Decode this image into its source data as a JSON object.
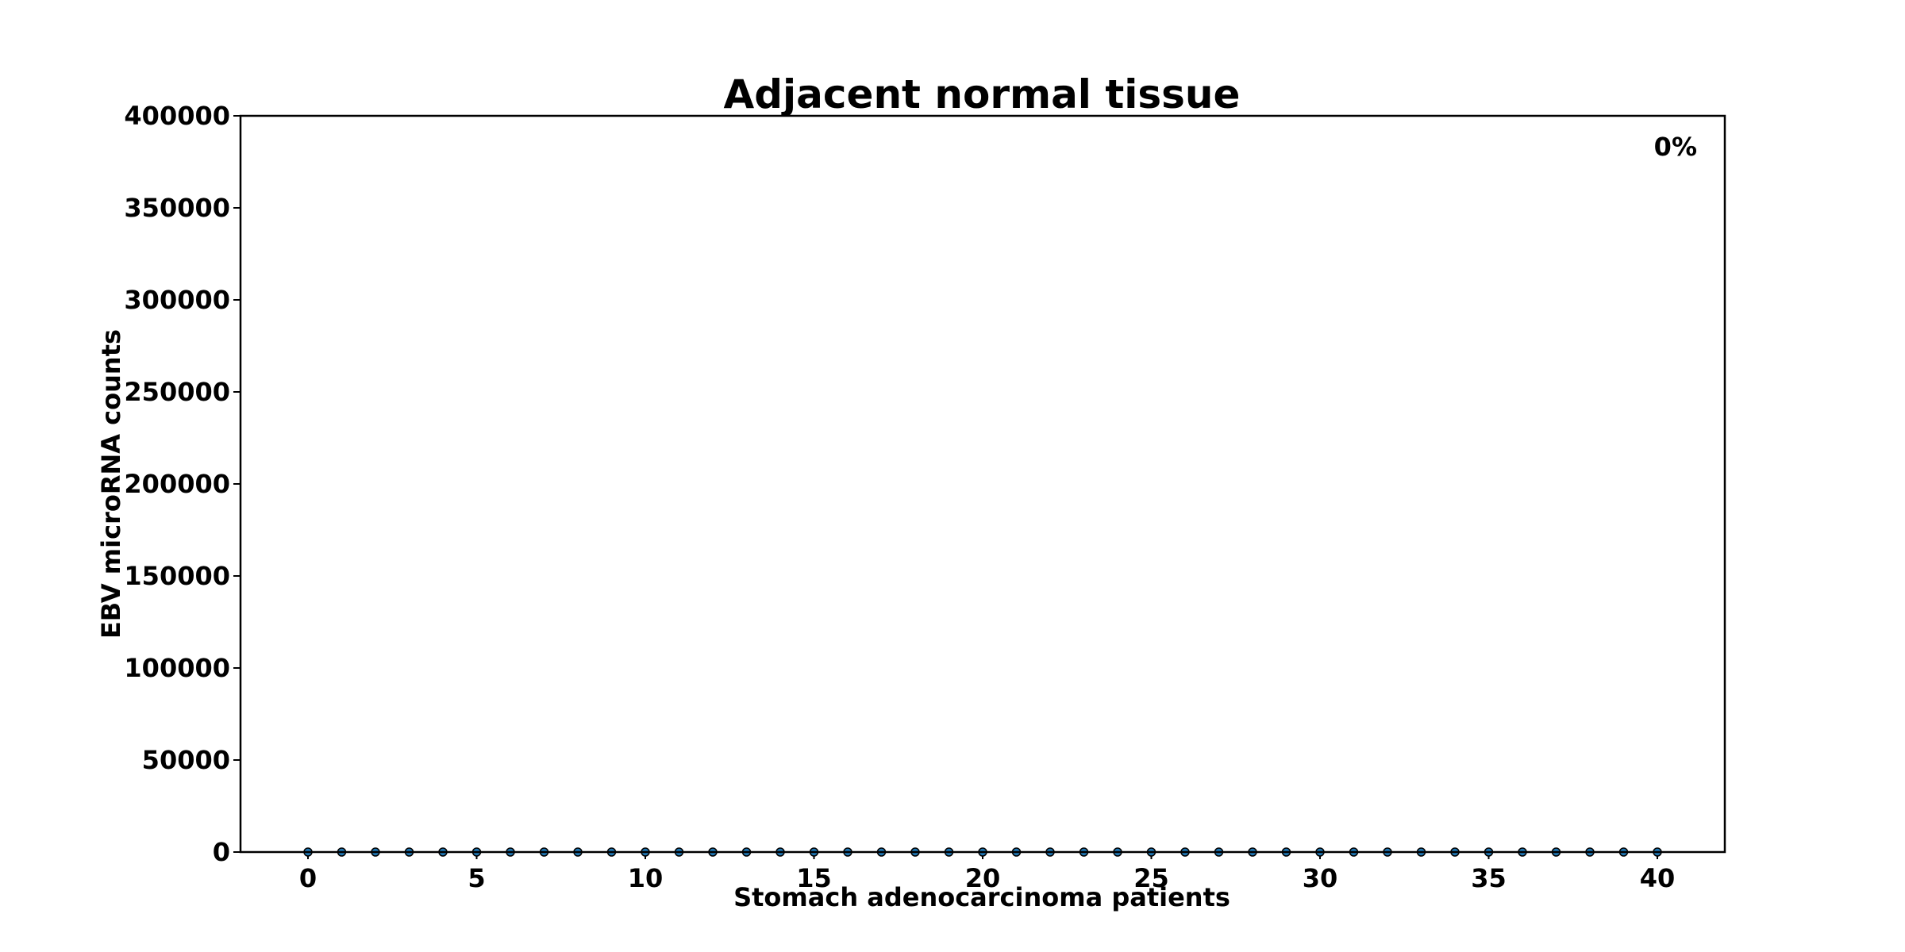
{
  "chart_data": {
    "type": "scatter",
    "title": "Adjacent normal tissue",
    "xlabel": "Stomach adenocarcinoma patients",
    "ylabel": "EBV microRNA counts",
    "annotation": "0%",
    "xlim": [
      -2,
      42
    ],
    "ylim": [
      0,
      400000
    ],
    "xticks": [
      0,
      5,
      10,
      15,
      20,
      25,
      30,
      35,
      40
    ],
    "yticks": [
      0,
      50000,
      100000,
      150000,
      200000,
      250000,
      300000,
      350000,
      400000
    ],
    "grid": false,
    "series": [
      {
        "color": "#1f77b4",
        "x": [
          0,
          1,
          2,
          3,
          4,
          5,
          6,
          7,
          8,
          9,
          10,
          11,
          12,
          13,
          14,
          15,
          16,
          17,
          18,
          19,
          20,
          21,
          22,
          23,
          24,
          25,
          26,
          27,
          28,
          29,
          30,
          31,
          32,
          33,
          34,
          35,
          36,
          37,
          38,
          39,
          40
        ],
        "y": [
          0,
          0,
          0,
          0,
          0,
          0,
          0,
          0,
          0,
          0,
          0,
          0,
          0,
          0,
          0,
          0,
          0,
          0,
          0,
          0,
          0,
          0,
          0,
          0,
          0,
          0,
          0,
          0,
          0,
          0,
          0,
          0,
          0,
          0,
          0,
          0,
          0,
          0,
          0,
          0,
          0
        ]
      }
    ]
  }
}
